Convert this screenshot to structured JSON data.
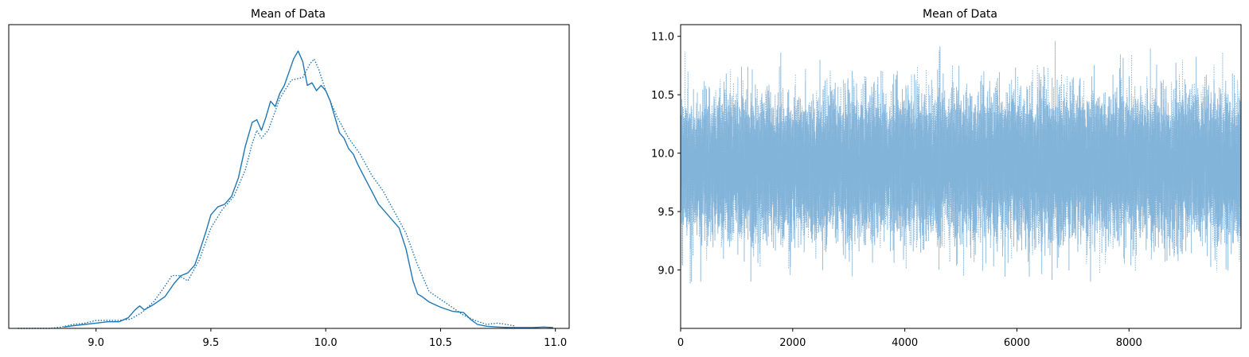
{
  "chart_data": [
    {
      "type": "line",
      "title": "Mean of Data",
      "xlabel": "",
      "ylabel": "",
      "xlim": [
        8.62,
        11.06
      ],
      "ylim": [
        0,
        1.15
      ],
      "xticks": [
        9.0,
        9.5,
        10.0,
        10.5,
        11.0
      ],
      "xtick_labels": [
        "9.0",
        "9.5",
        "10.0",
        "10.5",
        "11.0"
      ],
      "yticks": [],
      "grid": false,
      "color": "#1f77b4",
      "series": [
        {
          "style": "solid",
          "x": [
            8.86,
            8.9,
            8.95,
            9.0,
            9.05,
            9.1,
            9.14,
            9.17,
            9.19,
            9.21,
            9.25,
            9.3,
            9.34,
            9.37,
            9.4,
            9.43,
            9.45,
            9.48,
            9.5,
            9.53,
            9.56,
            9.59,
            9.62,
            9.65,
            9.68,
            9.7,
            9.72,
            9.74,
            9.76,
            9.78,
            9.8,
            9.82,
            9.84,
            9.86,
            9.88,
            9.9,
            9.92,
            9.94,
            9.96,
            9.98,
            10.0,
            10.02,
            10.04,
            10.06,
            10.08,
            10.1,
            10.12,
            10.14,
            10.17,
            10.2,
            10.23,
            10.26,
            10.29,
            10.32,
            10.35,
            10.38,
            10.4,
            10.42,
            10.45,
            10.5,
            10.55,
            10.6,
            10.63,
            10.66,
            10.7,
            10.75,
            10.8,
            10.85,
            10.9,
            10.95,
            10.99
          ],
          "y": [
            0.005,
            0.01,
            0.015,
            0.02,
            0.025,
            0.025,
            0.04,
            0.07,
            0.085,
            0.07,
            0.09,
            0.12,
            0.17,
            0.2,
            0.21,
            0.24,
            0.29,
            0.37,
            0.43,
            0.46,
            0.47,
            0.5,
            0.57,
            0.69,
            0.78,
            0.79,
            0.75,
            0.8,
            0.86,
            0.84,
            0.89,
            0.92,
            0.97,
            1.02,
            1.05,
            1.01,
            0.92,
            0.93,
            0.9,
            0.92,
            0.9,
            0.86,
            0.8,
            0.74,
            0.72,
            0.68,
            0.66,
            0.62,
            0.57,
            0.52,
            0.47,
            0.44,
            0.41,
            0.38,
            0.3,
            0.18,
            0.13,
            0.12,
            0.1,
            0.08,
            0.065,
            0.06,
            0.035,
            0.015,
            0.008,
            0.005,
            0.003,
            0.003,
            0.003,
            0.005,
            0.003
          ]
        },
        {
          "style": "dotted",
          "x": [
            8.66,
            8.7,
            8.75,
            8.8,
            8.85,
            8.9,
            8.95,
            9.0,
            9.05,
            9.1,
            9.15,
            9.2,
            9.25,
            9.3,
            9.33,
            9.36,
            9.4,
            9.45,
            9.5,
            9.55,
            9.6,
            9.65,
            9.68,
            9.7,
            9.72,
            9.75,
            9.8,
            9.85,
            9.9,
            9.93,
            9.95,
            9.97,
            10.0,
            10.05,
            10.1,
            10.15,
            10.2,
            10.25,
            10.3,
            10.35,
            10.4,
            10.45,
            10.5,
            10.55,
            10.6,
            10.65,
            10.7,
            10.75,
            10.82
          ],
          "y": [
            0.0,
            0.0,
            0.0,
            0.0,
            0.005,
            0.015,
            0.02,
            0.03,
            0.03,
            0.03,
            0.035,
            0.06,
            0.1,
            0.16,
            0.2,
            0.2,
            0.18,
            0.26,
            0.38,
            0.45,
            0.5,
            0.6,
            0.7,
            0.75,
            0.72,
            0.75,
            0.87,
            0.94,
            0.95,
            1.0,
            1.02,
            0.98,
            0.9,
            0.8,
            0.72,
            0.66,
            0.58,
            0.52,
            0.44,
            0.36,
            0.24,
            0.14,
            0.11,
            0.08,
            0.05,
            0.03,
            0.015,
            0.02,
            0.01
          ]
        }
      ]
    },
    {
      "type": "line",
      "title": "Mean of Data",
      "xlabel": "",
      "ylabel": "",
      "xlim": [
        0,
        9999
      ],
      "ylim": [
        8.5,
        11.1
      ],
      "xticks": [
        0,
        2000,
        4000,
        6000,
        8000
      ],
      "xtick_labels": [
        "0",
        "2000",
        "4000",
        "6000",
        "8000"
      ],
      "yticks": [
        9.0,
        9.5,
        10.0,
        10.5,
        11.0
      ],
      "ytick_labels": [
        "9.0",
        "9.5",
        "10.0",
        "10.5",
        "11.0"
      ],
      "grid": false,
      "color": "#7fb2d8",
      "series": [
        {
          "style": "solid",
          "n_samples": 10000,
          "mean": 9.9,
          "sd": 0.28,
          "min": 8.9,
          "max": 10.99
        },
        {
          "style": "dotted",
          "n_samples": 10000,
          "mean": 9.9,
          "sd": 0.28,
          "min": 8.67,
          "max": 10.96
        }
      ]
    }
  ]
}
